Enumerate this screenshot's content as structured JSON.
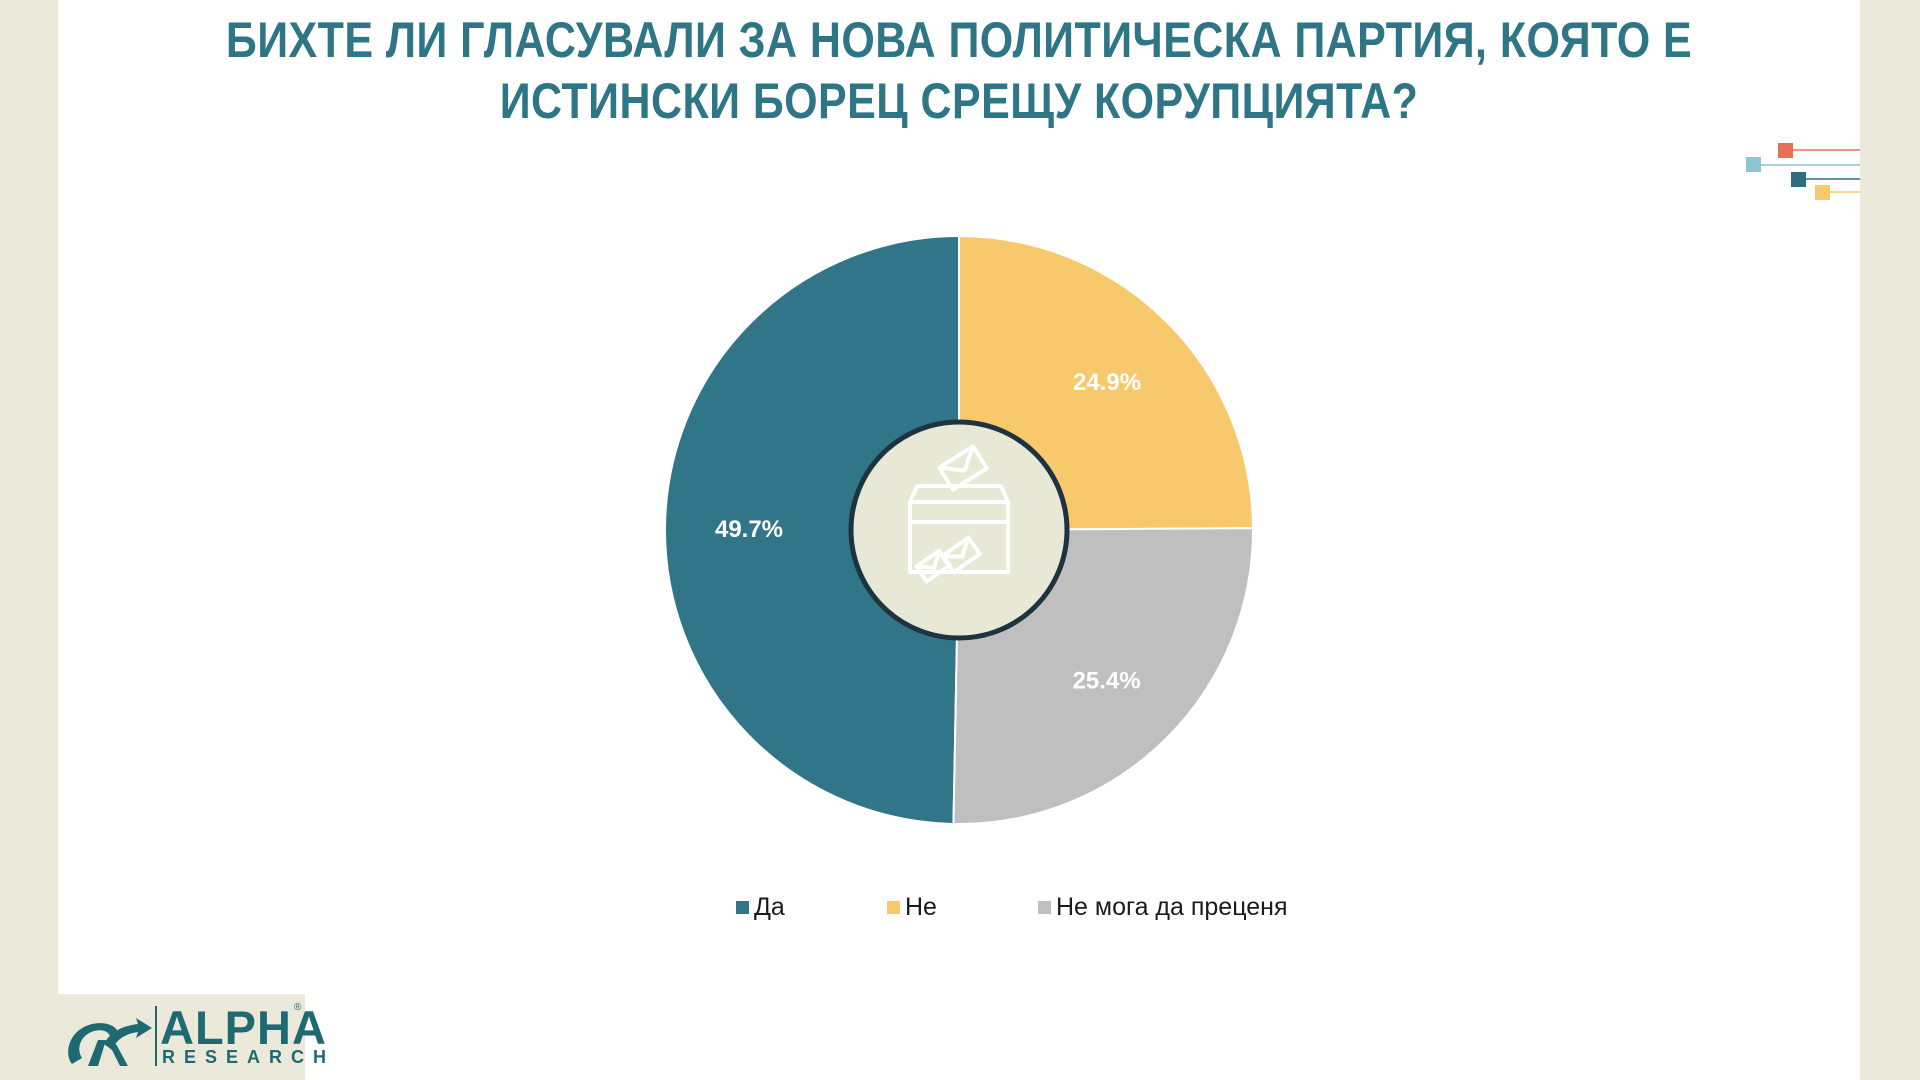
{
  "title": {
    "line1": "БИХТЕ ЛИ ГЛАСУВАЛИ ЗА НОВА ПОЛИТИЧЕСКА ПАРТИЯ, КОЯТО Е",
    "line2": "ИСТИНСКИ БОРЕЦ СРЕЩУ КОРУПЦИЯТА?"
  },
  "chart_data": {
    "type": "pie",
    "variant": "donut",
    "center_icon": "ballot-box-icon",
    "labels": [
      "Да",
      "Не",
      "Не мога да преценя"
    ],
    "values": [
      49.7,
      24.9,
      25.4
    ],
    "data_labels": [
      "49.7%",
      "24.9%",
      "25.4%"
    ],
    "colors": [
      "#317588",
      "#f7c86c",
      "#bfbfbf"
    ],
    "legend_position": "bottom"
  },
  "legend": {
    "items": [
      {
        "label": "Да",
        "color": "#317588"
      },
      {
        "label": "Не",
        "color": "#f7c86c"
      },
      {
        "label": "Не мога да преценя",
        "color": "#bfbfbf"
      }
    ]
  },
  "logo": {
    "brand": "ALPHA",
    "sub": "RESEARCH",
    "reg": "®"
  },
  "decor": {
    "colors": [
      "#e8705a",
      "#8bc6d2",
      "#2f6e80",
      "#f7c86c"
    ]
  }
}
